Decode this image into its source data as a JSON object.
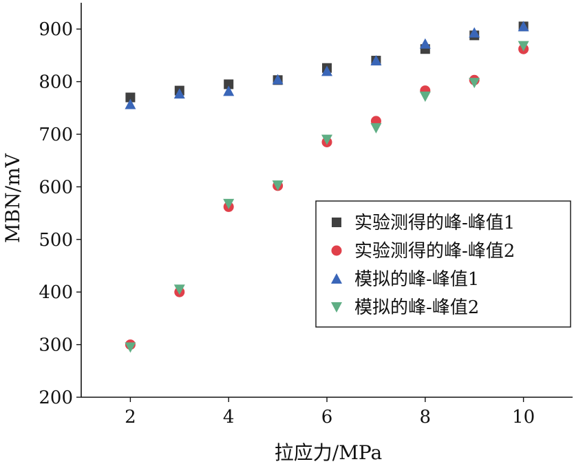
{
  "chart_data": {
    "type": "scatter",
    "title": "",
    "xlabel": "拉应力/MPa",
    "ylabel": "MBN/mV",
    "xlim": [
      1,
      11
    ],
    "ylim": [
      200,
      950
    ],
    "x_ticks": [
      2,
      4,
      6,
      8,
      10
    ],
    "y_ticks": [
      200,
      300,
      400,
      500,
      600,
      700,
      800,
      900
    ],
    "grid": false,
    "legend_position": "center-right",
    "series": [
      {
        "name": "实验测得的峰-峰值1",
        "marker": "square",
        "color": "#404040",
        "x": [
          2,
          3,
          4,
          5,
          6,
          7,
          8,
          9,
          10
        ],
        "y": [
          770,
          783,
          795,
          803,
          826,
          840,
          862,
          888,
          905
        ]
      },
      {
        "name": "实验测得的峰-峰值2",
        "marker": "circle",
        "color": "#e0404a",
        "x": [
          2,
          3,
          4,
          5,
          6,
          7,
          8,
          9,
          10
        ],
        "y": [
          300,
          400,
          562,
          602,
          685,
          725,
          783,
          803,
          862
        ]
      },
      {
        "name": "模拟的峰-峰值1",
        "marker": "triangle-up",
        "color": "#3a66b8",
        "x": [
          2,
          3,
          4,
          5,
          6,
          7,
          8,
          9,
          10
        ],
        "y": [
          757,
          777,
          782,
          804,
          820,
          840,
          872,
          893,
          905
        ]
      },
      {
        "name": "模拟的峰-峰值2",
        "marker": "triangle-down",
        "color": "#5fae84",
        "x": [
          2,
          3,
          4,
          5,
          6,
          7,
          8,
          9,
          10
        ],
        "y": [
          295,
          405,
          568,
          603,
          690,
          712,
          772,
          798,
          868
        ]
      }
    ]
  }
}
